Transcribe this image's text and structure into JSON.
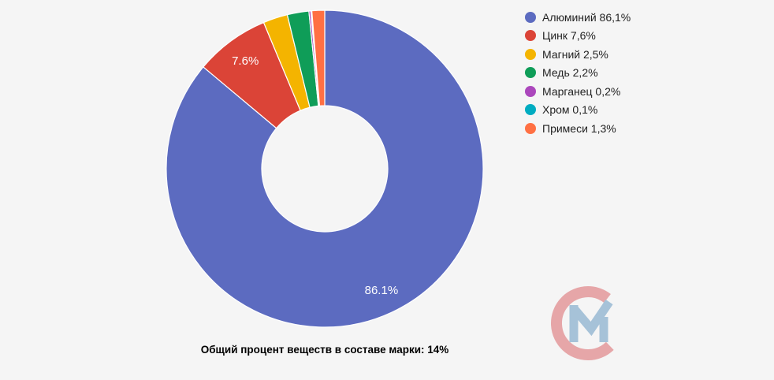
{
  "background_color": "#f5f5f5",
  "chart_data": {
    "type": "pie",
    "donut": true,
    "legend_position": "right",
    "slices": [
      {
        "label": "Алюминий",
        "value": 86.1,
        "display": "86,1%",
        "pie_label": "86.1%",
        "color": "#5C6BC0"
      },
      {
        "label": "Цинк",
        "value": 7.6,
        "display": "7,6%",
        "pie_label": "7.6%",
        "color": "#DB4437"
      },
      {
        "label": "Магний",
        "value": 2.5,
        "display": "2,5%",
        "pie_label": null,
        "color": "#F4B400"
      },
      {
        "label": "Медь",
        "value": 2.2,
        "display": "2,2%",
        "pie_label": null,
        "color": "#0F9D58"
      },
      {
        "label": "Марганец",
        "value": 0.2,
        "display": "0,2%",
        "pie_label": null,
        "color": "#AB47BC"
      },
      {
        "label": "Хром",
        "value": 0.1,
        "display": "0,1%",
        "pie_label": null,
        "color": "#00ACC1"
      },
      {
        "label": "Примеси",
        "value": 1.3,
        "display": "1,3%",
        "pie_label": null,
        "color": "#FF7043"
      }
    ]
  },
  "caption": "Общий процент веществ в составе марки: 14%",
  "watermark": {
    "letter_c_color": "#E6A6A8",
    "letter_m_color": "#A6C2D8"
  }
}
